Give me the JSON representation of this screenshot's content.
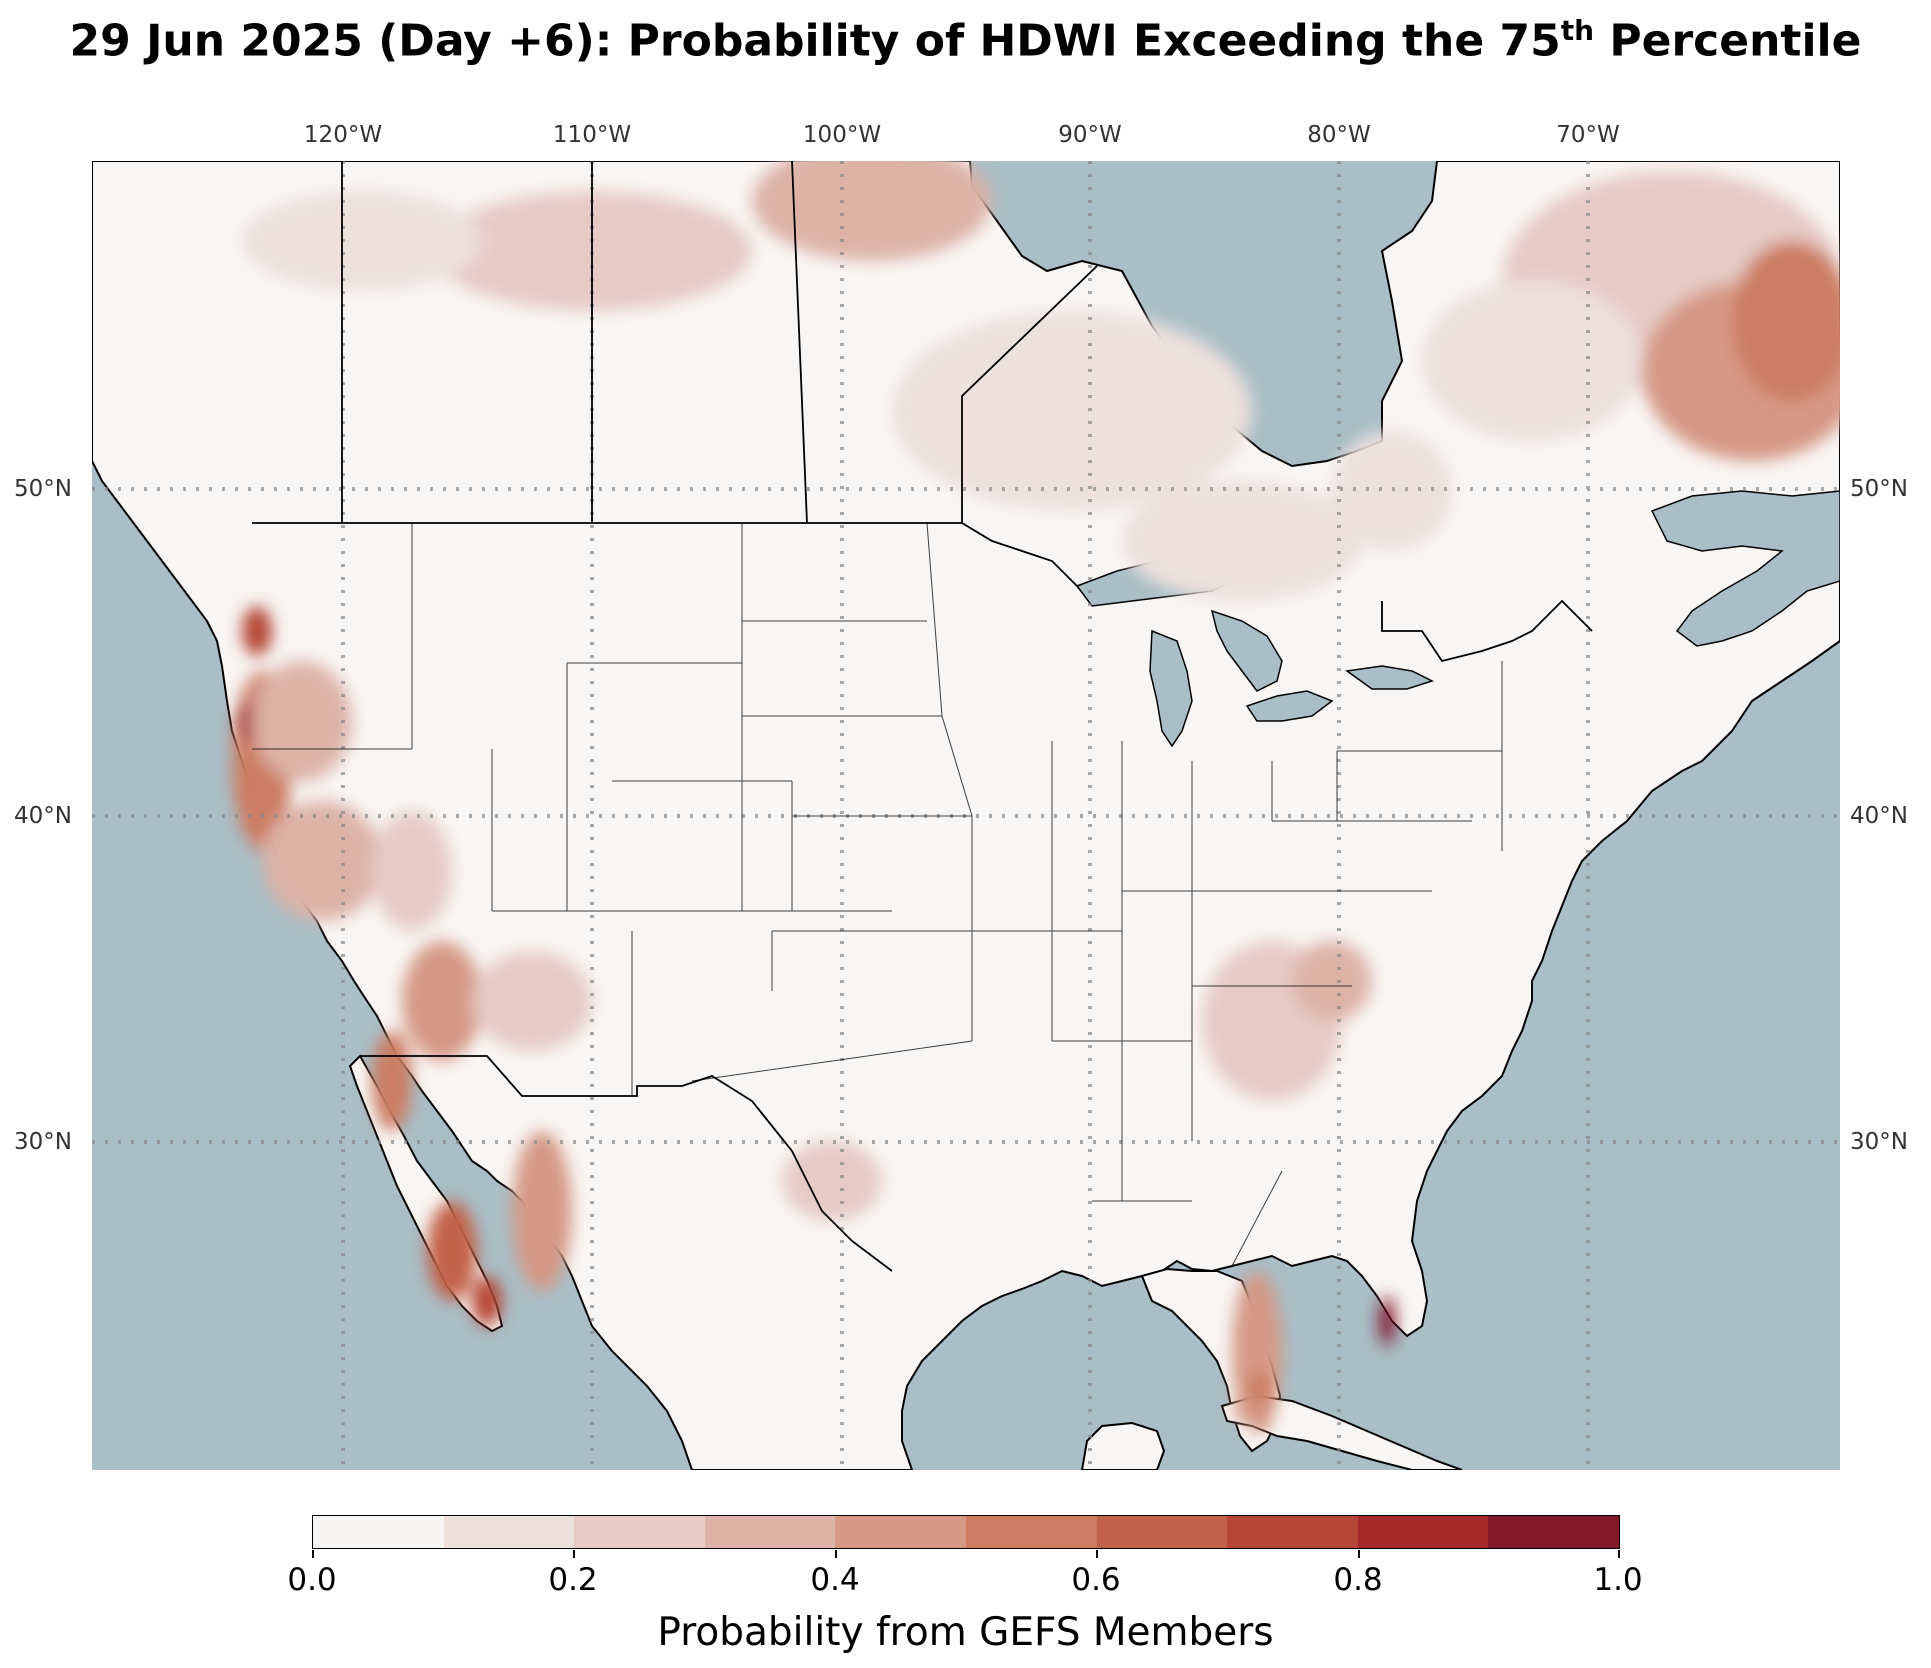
{
  "title": {
    "main": "29 Jun 2025 (Day +6): Probability of HDWI Exceeding the 75",
    "sup": "th",
    "tail": " Percentile"
  },
  "map": {
    "projection": "Lambert Conformal (CONUS)",
    "ocean_color": "#a9bec6",
    "land_color": "#f8f6f4",
    "lakes_color": "#a9bec6",
    "gridlines": "dotted gray",
    "lon_labels": [
      "120°W",
      "110°W",
      "100°W",
      "90°W",
      "80°W",
      "70°W"
    ],
    "lat_labels_left": [
      "50°N",
      "40°N",
      "30°N"
    ],
    "lat_labels_right": [
      "50°N",
      "40°N",
      "30°N"
    ]
  },
  "colorbar": {
    "title": "Probability from GEFS Members",
    "tick_labels": [
      "0.0",
      "0.2",
      "0.4",
      "0.6",
      "0.8",
      "1.0"
    ],
    "colors": [
      "#f7f5f3",
      "#ede0dd",
      "#e6cbc5",
      "#ddb3a7",
      "#d59985",
      "#cc7d64",
      "#c2624a",
      "#b54534",
      "#a42b29",
      "#82192b"
    ]
  },
  "regions_of_elevated_probability": [
    {
      "name": "Southern Quebec / Labrador",
      "level": "0.4-0.6"
    },
    {
      "name": "Northern Manitoba / Hudson Bay coast",
      "level": "0.3-0.5"
    },
    {
      "name": "Pacific Northwest coast / Northern California",
      "level": "0.5-0.9"
    },
    {
      "name": "Baja California",
      "level": "0.4-0.8"
    },
    {
      "name": "Florida peninsula",
      "level": "0.3-0.6"
    },
    {
      "name": "Bahamas (Andros)",
      "level": "0.8-0.9"
    }
  ]
}
